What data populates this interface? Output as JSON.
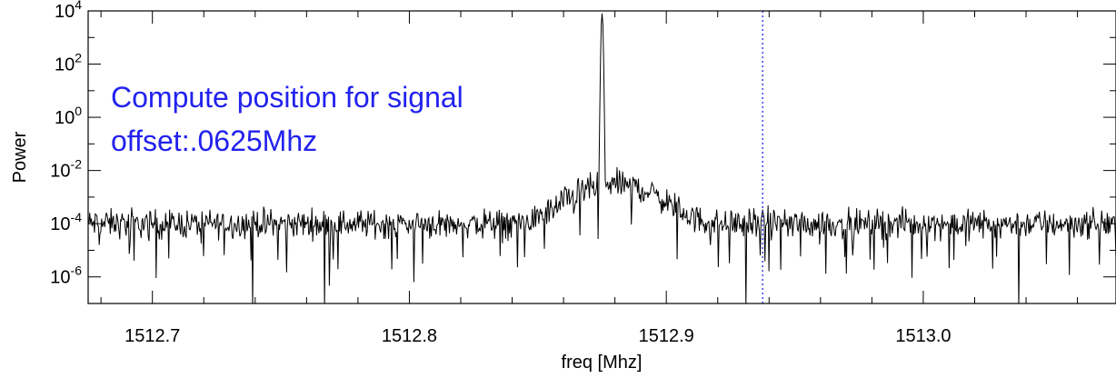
{
  "chart_data": {
    "type": "line",
    "title": "",
    "xlabel": "freq [Mhz]",
    "ylabel": "Power",
    "xlim": [
      1512.675,
      1513.075
    ],
    "ylim": [
      1e-07,
      10000.0
    ],
    "yscale": "log",
    "grid": false,
    "x_ticks": [
      1512.7,
      1512.8,
      1512.9,
      1513.0
    ],
    "x_tick_labels": [
      "1512.7",
      "1512.8",
      "1512.9",
      "1513.0"
    ],
    "y_tick_exponents": [
      4,
      2,
      0,
      -2,
      -4,
      -6
    ],
    "y_tick_base": "10",
    "annotation": {
      "lines": [
        "Compute position for signal",
        "offset:.0625Mhz"
      ],
      "color": "#2222ee"
    },
    "marker_line": {
      "x": 1512.9375,
      "style": "dotted",
      "color": "#2222ee"
    },
    "series": [
      {
        "color": "#000000",
        "noise_floor": 0.0001,
        "peak": {
          "x": 1512.875,
          "value": 8000
        },
        "hump": {
          "center": 1512.88,
          "value": 0.003
        }
      }
    ]
  }
}
